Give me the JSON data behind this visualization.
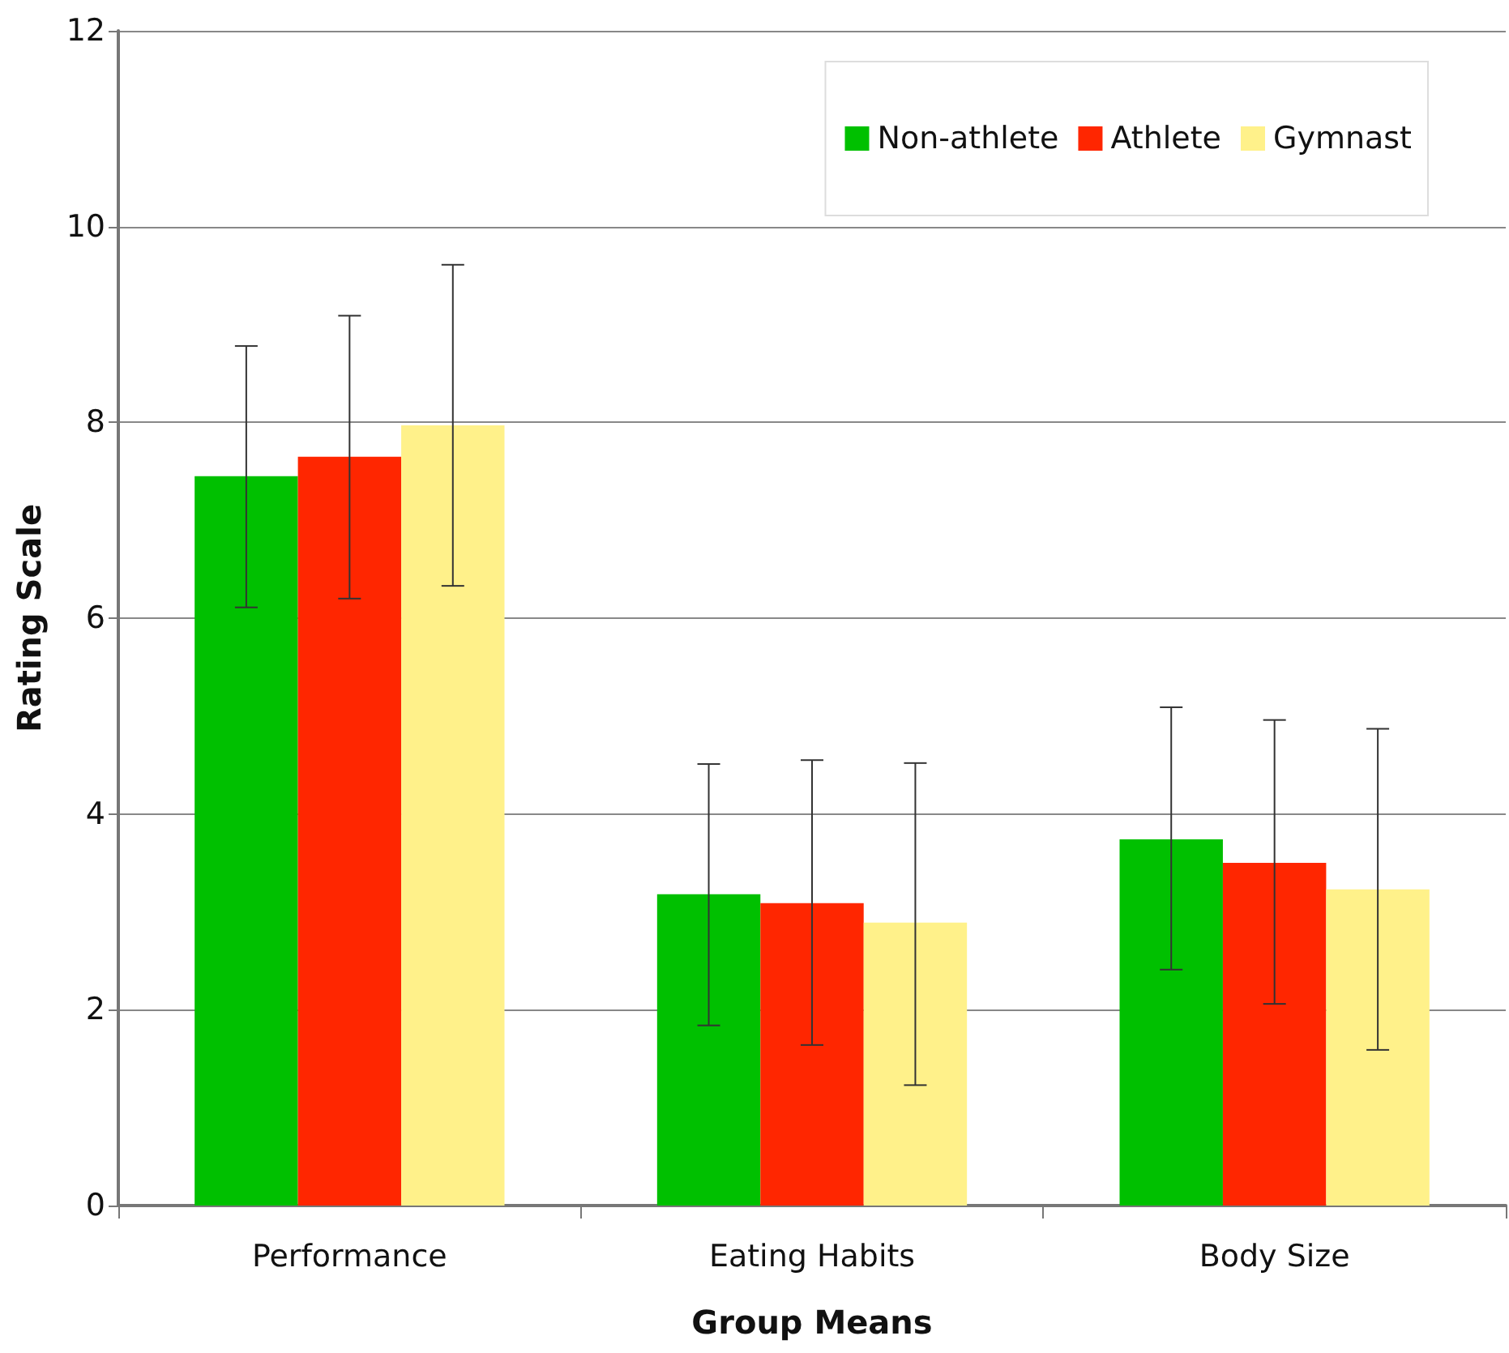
{
  "chart_data": {
    "type": "bar",
    "xlabel": "Group Means",
    "ylabel": "Rating Scale",
    "categories": [
      "Performance",
      "Eating Habits",
      "Body Size"
    ],
    "series": [
      {
        "name": "Non-athlete",
        "color": "#00c000",
        "values": [
          7.45,
          3.18,
          3.74
        ],
        "errors": [
          [
            6.11,
            8.78
          ],
          [
            1.84,
            4.51
          ],
          [
            2.41,
            5.09
          ]
        ]
      },
      {
        "name": "Athlete",
        "color": "#ff2600",
        "values": [
          7.65,
          3.09,
          3.5
        ],
        "errors": [
          [
            6.2,
            9.09
          ],
          [
            1.64,
            4.55
          ],
          [
            2.06,
            4.96
          ]
        ]
      },
      {
        "name": "Gymnast",
        "color": "#fff18a",
        "values": [
          7.97,
          2.89,
          3.23
        ],
        "errors": [
          [
            6.33,
            9.61
          ],
          [
            1.23,
            4.52
          ],
          [
            1.59,
            4.87
          ]
        ]
      }
    ],
    "ylim": [
      0,
      12
    ],
    "yticks": [
      0,
      2,
      4,
      6,
      8,
      10,
      12
    ],
    "grid": "y",
    "legend": "top right"
  }
}
